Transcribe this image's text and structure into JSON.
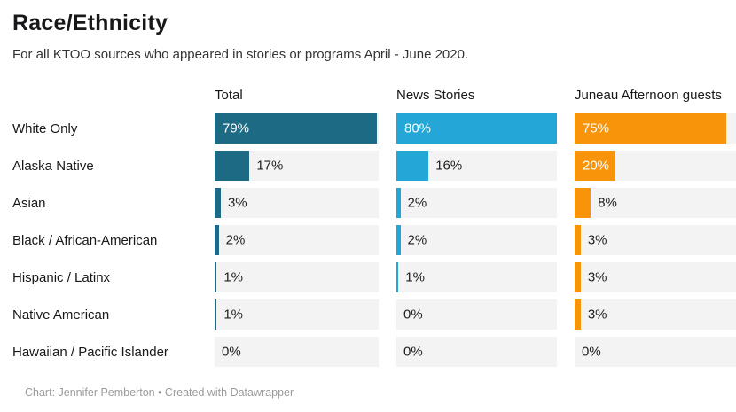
{
  "header": {
    "title": "Race/Ethnicity",
    "subtitle": "For all KTOO sources who appeared in stories or programs April - June 2020."
  },
  "chart_data": {
    "type": "bar",
    "title": "Race/Ethnicity",
    "subtitle": "For all KTOO sources who appeared in stories or programs April - June 2020.",
    "categories": [
      "White Only",
      "Alaska Native",
      "Asian",
      "Black / African-American",
      "Hispanic / Latinx",
      "Native American",
      "Hawaiian / Pacific Islander"
    ],
    "series": [
      {
        "name": "Total",
        "color": "#1d6a84",
        "values": [
          79,
          17,
          3,
          2,
          1,
          1,
          0
        ]
      },
      {
        "name": "News Stories",
        "color": "#24a7d6",
        "values": [
          80,
          16,
          2,
          2,
          1,
          0,
          0
        ]
      },
      {
        "name": "Juneau Afternoon guests",
        "color": "#f8940a",
        "values": [
          75,
          20,
          8,
          3,
          3,
          3,
          0
        ]
      }
    ],
    "value_suffix": "%",
    "xlim": [
      0,
      80
    ],
    "orientation": "horizontal",
    "grid": false,
    "legend_position": "column-headers",
    "track_color": "#f3f3f3",
    "inside_label_threshold": 20
  },
  "footer": {
    "credit": "Chart: Jennifer Pemberton • Created with Datawrapper"
  }
}
